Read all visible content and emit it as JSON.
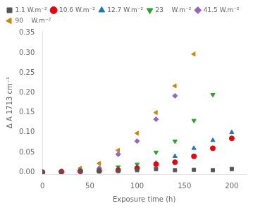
{
  "chart_data": {
    "type": "scatter",
    "x_label": "Exposure time (h)",
    "y_label": "Δ A 1713 cm⁻¹",
    "series": [
      {
        "name": "1.1 W.m⁻²",
        "color": "#555555",
        "marker": "square",
        "x": [
          0,
          20,
          40,
          60,
          80,
          100,
          120,
          140,
          160,
          180,
          200
        ],
        "values": [
          0,
          0.001,
          0.002,
          0.003,
          0.003,
          0.005,
          0.008,
          0.005,
          0.006,
          0.005,
          0.008
        ]
      },
      {
        "name": "10.6 W.m⁻²",
        "color": "#e8000b",
        "marker": "circle",
        "x": [
          0,
          20,
          40,
          60,
          80,
          100,
          120,
          140,
          160,
          180,
          200
        ],
        "values": [
          0,
          0.001,
          0.002,
          0.003,
          0.005,
          0.01,
          0.02,
          0.025,
          0.04,
          0.06,
          0.085
        ]
      },
      {
        "name": "12.7 W.m⁻²",
        "color": "#1f77b4",
        "marker": "triangle-up",
        "x": [
          0,
          20,
          40,
          60,
          80,
          100,
          120,
          140,
          160,
          180,
          200
        ],
        "values": [
          0,
          0.001,
          0.003,
          0.005,
          0.008,
          0.013,
          0.023,
          0.04,
          0.06,
          0.08,
          0.1
        ]
      },
      {
        "name": "23    W.m⁻²",
        "color": "#2ca02c",
        "marker": "triangle-down",
        "x": [
          0,
          20,
          40,
          60,
          80,
          100,
          120,
          140,
          160,
          180
        ],
        "values": [
          0,
          0.001,
          0.003,
          0.005,
          0.013,
          0.02,
          0.05,
          0.078,
          0.13,
          0.195
        ]
      },
      {
        "name": "41.5 W.m⁻²",
        "color": "#9467bd",
        "marker": "diamond",
        "x": [
          0,
          20,
          40,
          60,
          80,
          100,
          120,
          140
        ],
        "values": [
          0,
          0.002,
          0.005,
          0.01,
          0.045,
          0.078,
          0.133,
          0.192
        ]
      },
      {
        "name": "90    W.m⁻²",
        "color": "#c8880a",
        "marker": "triangle-left",
        "x": [
          0,
          20,
          40,
          60,
          80,
          100,
          120,
          140,
          160
        ],
        "values": [
          0,
          0.003,
          0.01,
          0.022,
          0.055,
          0.098,
          0.15,
          0.217,
          0.297
        ]
      }
    ],
    "xlim": [
      0,
      215
    ],
    "ylim": [
      -0.005,
      0.355
    ],
    "xticks": [
      0,
      50,
      100,
      150,
      200
    ],
    "yticks": [
      {
        "value": 0,
        "label": "0.00"
      },
      {
        "value": 0.05,
        "label": "0.05"
      },
      {
        "value": 0.1,
        "label": "0.10"
      },
      {
        "value": 0.15,
        "label": "0.15"
      },
      {
        "value": 0.2,
        "label": "0.20"
      },
      {
        "value": 0.25,
        "label": "0.25"
      },
      {
        "value": 0.3,
        "label": "0.30"
      },
      {
        "value": 0.35,
        "label": "0.35"
      }
    ],
    "grid": false,
    "legend": "upper left"
  }
}
